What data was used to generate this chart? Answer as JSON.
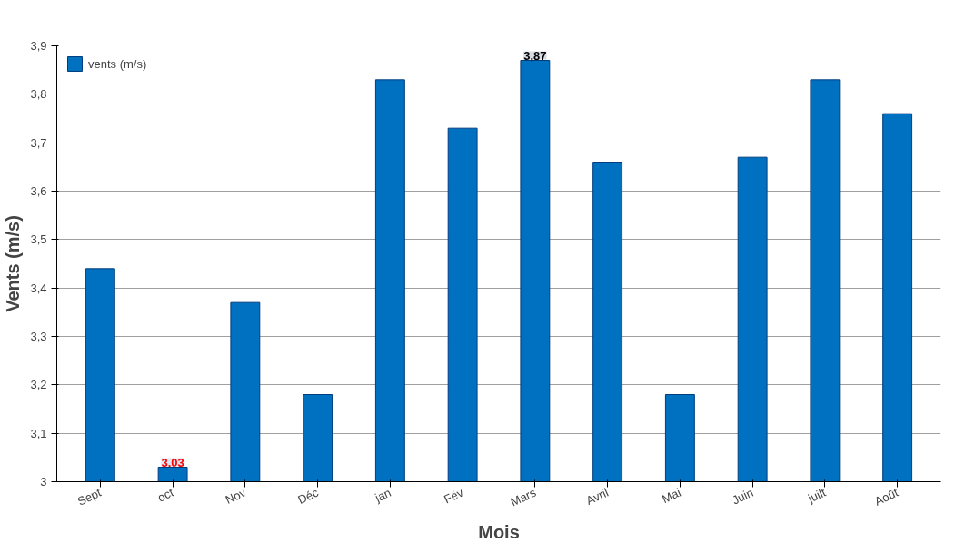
{
  "chart_data": {
    "type": "bar",
    "xlabel": "Mois",
    "ylabel": "Vents (m/s)",
    "categories": [
      "Sept",
      "oct",
      "Nov",
      "Déc",
      "jan",
      "Fév",
      "Mars",
      "Avril",
      "Mai",
      "Juin",
      "juilt",
      "Août"
    ],
    "series": [
      {
        "name": "vents (m/s)",
        "color": "#0070c0",
        "values": [
          3.44,
          3.03,
          3.37,
          3.18,
          3.83,
          3.73,
          3.87,
          3.66,
          3.18,
          3.67,
          3.83,
          3.76
        ]
      }
    ],
    "ylim": [
      3,
      3.9
    ],
    "yticks": [
      3,
      {
        "value": 3.1,
        "label": "3,1"
      },
      {
        "value": 3.2,
        "label": "3,2"
      },
      {
        "value": 3.3,
        "label": "3,3"
      },
      {
        "value": 3.4,
        "label": "3,4"
      },
      {
        "value": 3.5,
        "label": "3,5"
      },
      {
        "value": 3.6,
        "label": "3,6"
      },
      {
        "value": 3.7,
        "label": "3,7"
      },
      {
        "value": 3.8,
        "label": "3,8"
      },
      {
        "value": 3.9,
        "label": "3,9"
      }
    ],
    "annotations": [
      {
        "text": "3.03",
        "x": "oct",
        "y": 3.03
      },
      {
        "text": "3,87",
        "x": "Mars",
        "y": 3.87
      }
    ],
    "grid": "y",
    "legend": "top left"
  }
}
